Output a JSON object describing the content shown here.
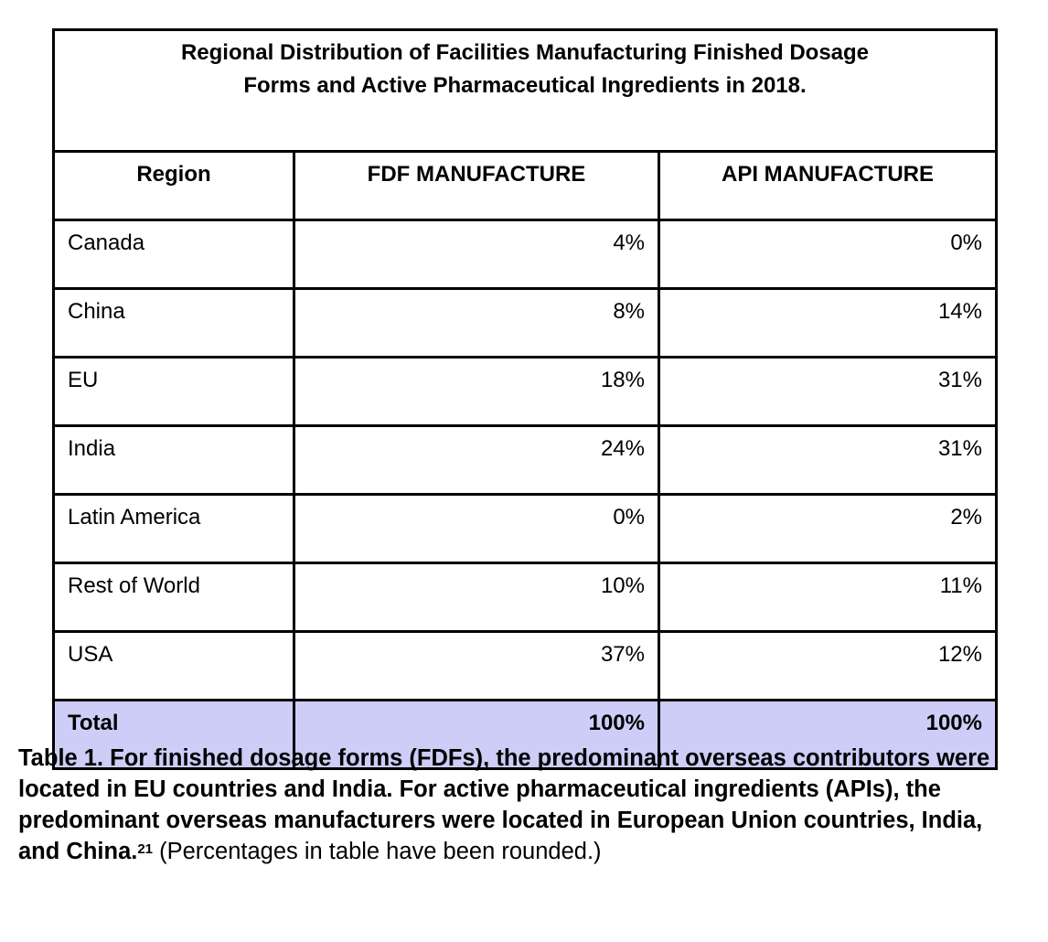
{
  "table": {
    "title_line1": "Regional Distribution of Facilities Manufacturing Finished Dosage",
    "title_line2": "Forms and Active Pharmaceutical Ingredients in 2018.",
    "headers": [
      "Region",
      "FDF MANUFACTURE",
      "API MANUFACTURE"
    ],
    "rows": [
      [
        "Canada",
        "4%",
        "0%"
      ],
      [
        "China",
        "8%",
        "14%"
      ],
      [
        "EU",
        "18%",
        "31%"
      ],
      [
        "India",
        "24%",
        "31%"
      ],
      [
        "Latin America",
        "0%",
        "2%"
      ],
      [
        "Rest of World",
        "10%",
        "11%"
      ],
      [
        "USA",
        "37%",
        "12%"
      ]
    ],
    "total": [
      "Total",
      "100%",
      "100%"
    ],
    "total_fill_color": "#cdcdf8"
  },
  "caption": {
    "bold_text": "Table 1. For finished dosage forms (FDFs), the predominant overseas contributors were located in EU countries and India. For active pharmaceutical ingredients (APIs), the predominant overseas manufacturers were located in European Union countries, India, and China.",
    "footnote": "21",
    "normal_text": " (Percentages in table have been rounded.)"
  }
}
